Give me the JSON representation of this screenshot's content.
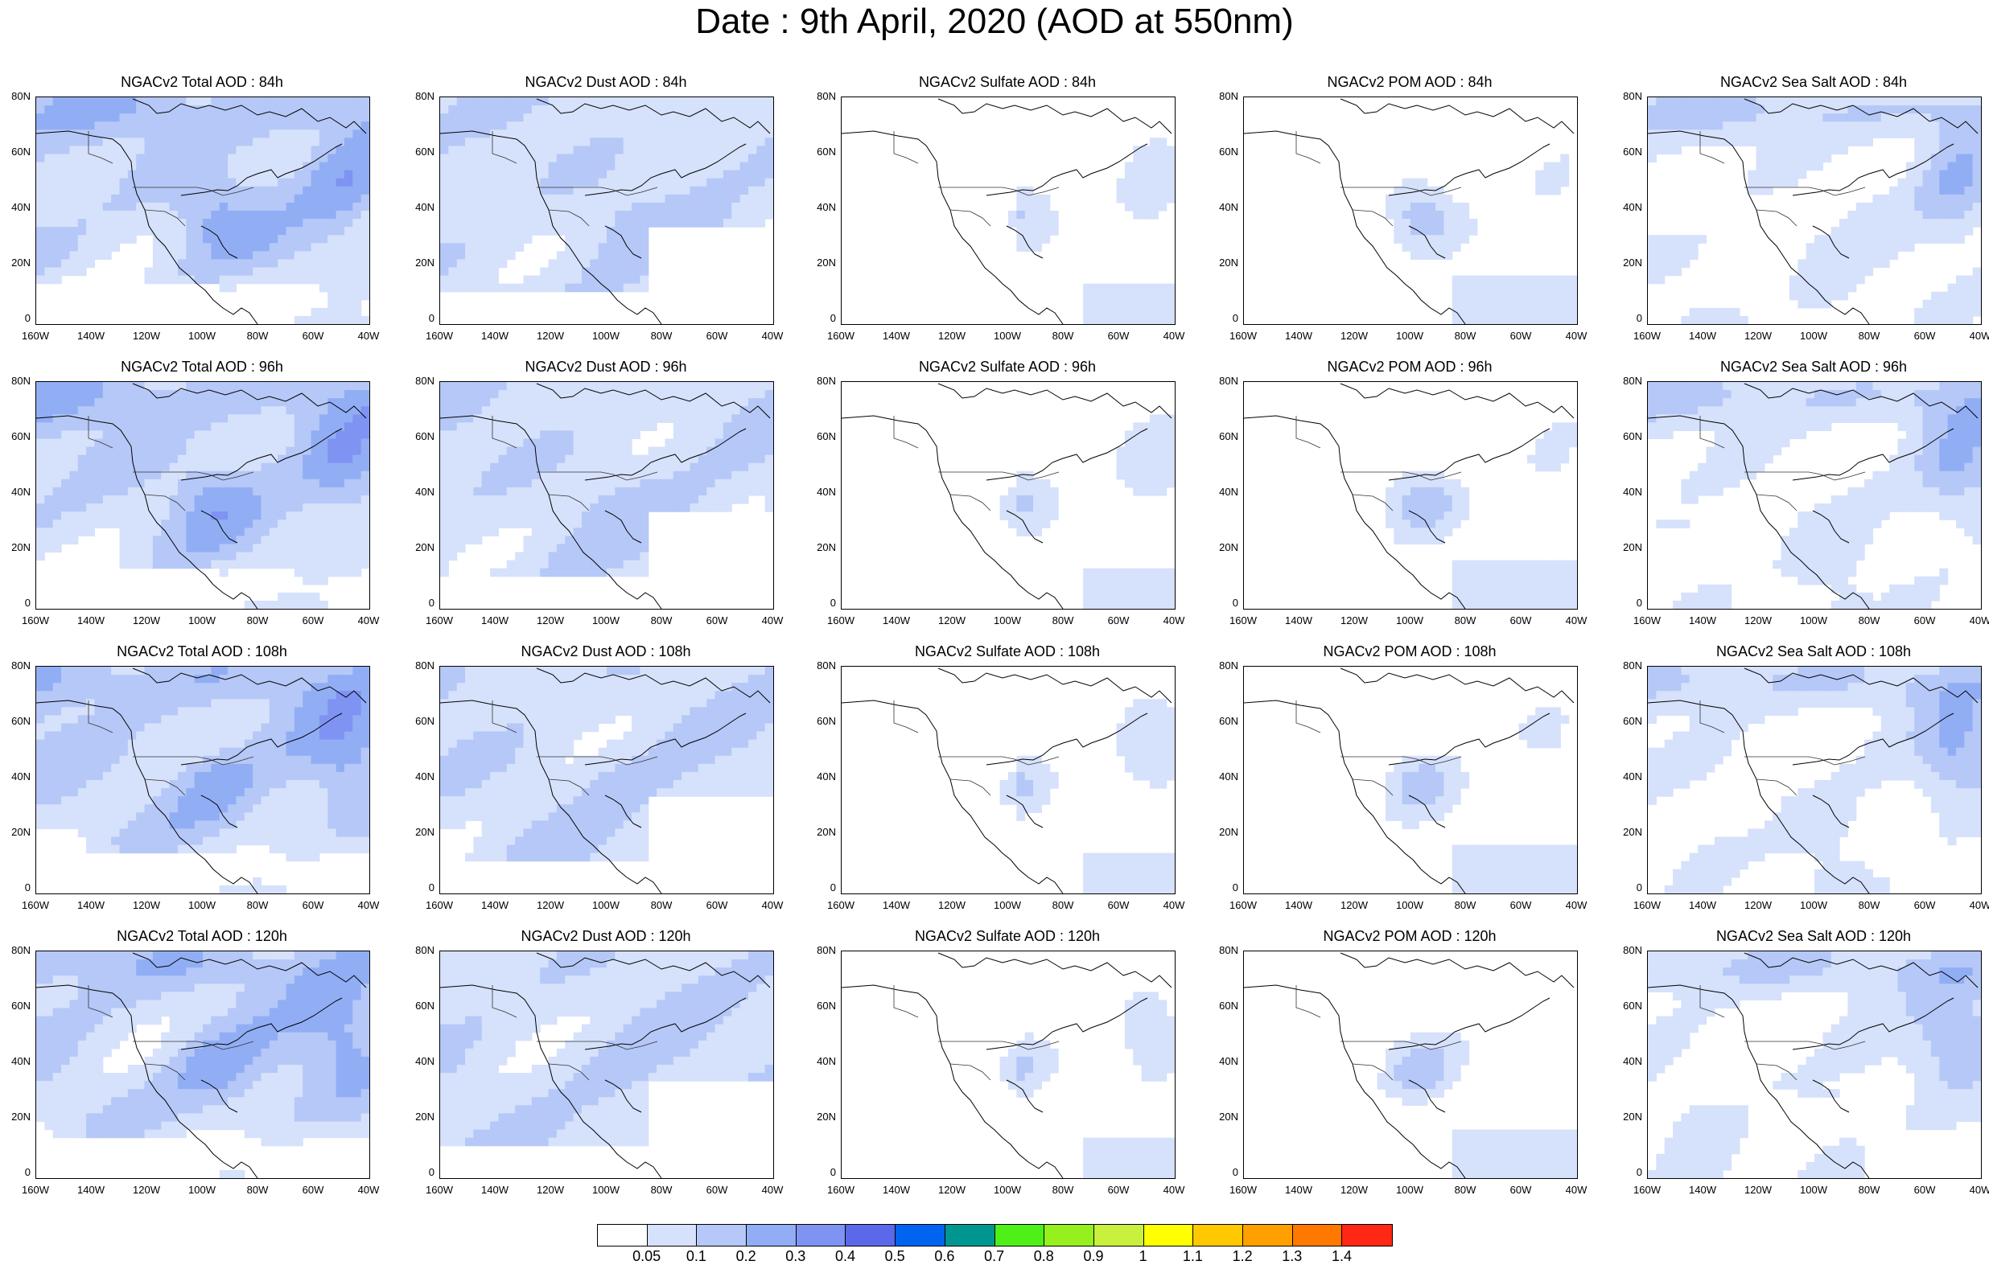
{
  "title": "Date : 9th April, 2020 (AOD at 550nm)",
  "lat_labels": [
    "80N",
    "60N",
    "40N",
    "20N",
    "0"
  ],
  "lon_labels": [
    "160W",
    "140W",
    "120W",
    "100W",
    "80W",
    "60W",
    "40W"
  ],
  "panels": [
    {
      "title": "NGACv2 Total AOD : 84h",
      "variable": "total",
      "lead": "84h"
    },
    {
      "title": "NGACv2 Dust AOD : 84h",
      "variable": "dust",
      "lead": "84h"
    },
    {
      "title": "NGACv2 Sulfate AOD : 84h",
      "variable": "sulfate",
      "lead": "84h"
    },
    {
      "title": "NGACv2 POM AOD : 84h",
      "variable": "pom",
      "lead": "84h"
    },
    {
      "title": "NGACv2 Sea Salt AOD : 84h",
      "variable": "seasalt",
      "lead": "84h"
    },
    {
      "title": "NGACv2 Total AOD : 96h",
      "variable": "total",
      "lead": "96h"
    },
    {
      "title": "NGACv2 Dust AOD : 96h",
      "variable": "dust",
      "lead": "96h"
    },
    {
      "title": "NGACv2 Sulfate AOD : 96h",
      "variable": "sulfate",
      "lead": "96h"
    },
    {
      "title": "NGACv2 POM AOD : 96h",
      "variable": "pom",
      "lead": "96h"
    },
    {
      "title": "NGACv2 Sea Salt AOD : 96h",
      "variable": "seasalt",
      "lead": "96h"
    },
    {
      "title": "NGACv2 Total AOD : 108h",
      "variable": "total",
      "lead": "108h"
    },
    {
      "title": "NGACv2 Dust AOD : 108h",
      "variable": "dust",
      "lead": "108h"
    },
    {
      "title": "NGACv2 Sulfate AOD : 108h",
      "variable": "sulfate",
      "lead": "108h"
    },
    {
      "title": "NGACv2 POM AOD : 108h",
      "variable": "pom",
      "lead": "108h"
    },
    {
      "title": "NGACv2 Sea Salt AOD : 108h",
      "variable": "seasalt",
      "lead": "108h"
    },
    {
      "title": "NGACv2 Total AOD : 120h",
      "variable": "total",
      "lead": "120h"
    },
    {
      "title": "NGACv2 Dust AOD : 120h",
      "variable": "dust",
      "lead": "120h"
    },
    {
      "title": "NGACv2 Sulfate AOD : 120h",
      "variable": "sulfate",
      "lead": "120h"
    },
    {
      "title": "NGACv2 POM AOD : 120h",
      "variable": "pom",
      "lead": "120h"
    },
    {
      "title": "NGACv2 Sea Salt  AOD : 120h",
      "variable": "seasalt",
      "lead": "120h"
    }
  ],
  "colorbar": {
    "colors": [
      "#ffffff",
      "#d6e1fb",
      "#b5c8f7",
      "#91aef5",
      "#7f93f2",
      "#5b68ea",
      "#0064f0",
      "#009690",
      "#4ef018",
      "#96f01e",
      "#c8f03c",
      "#ffff00",
      "#ffc800",
      "#ffa000",
      "#ff7800",
      "#ff2814"
    ],
    "labels": [
      "0.05",
      "0.1",
      "0.2",
      "0.3",
      "0.4",
      "0.5",
      "0.6",
      "0.7",
      "0.8",
      "0.9",
      "1",
      "1.1",
      "1.2",
      "1.3",
      "1.4"
    ]
  }
}
